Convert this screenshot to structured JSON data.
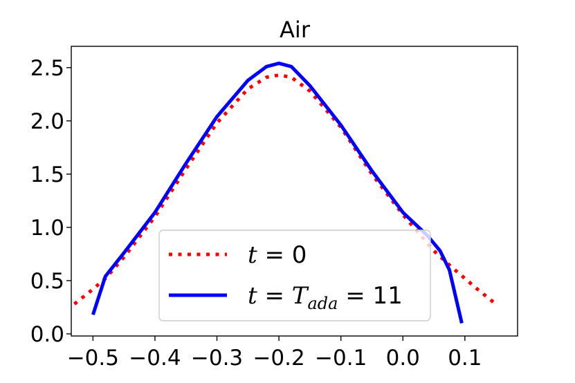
{
  "chart_data": {
    "type": "line",
    "title": "Air",
    "xlabel": "",
    "ylabel": "",
    "xlim": [
      -0.535,
      0.185
    ],
    "ylim": [
      -0.02,
      2.7
    ],
    "x_ticks": [
      -0.5,
      -0.4,
      -0.3,
      -0.2,
      -0.1,
      0.0,
      0.1
    ],
    "x_tick_labels": [
      "−0.5",
      "−0.4",
      "−0.3",
      "−0.2",
      "−0.1",
      "0.0",
      "0.1"
    ],
    "y_ticks": [
      0.0,
      0.5,
      1.0,
      1.5,
      2.0,
      2.5
    ],
    "y_tick_labels": [
      "0.0",
      "0.5",
      "1.0",
      "1.5",
      "2.0",
      "2.5"
    ],
    "grid": false,
    "legend_position": "lower-center",
    "series": [
      {
        "name": "t = 0",
        "color": "#ff0000",
        "style": "dotted",
        "x": [
          -0.53,
          -0.5,
          -0.48,
          -0.45,
          -0.4,
          -0.35,
          -0.3,
          -0.25,
          -0.22,
          -0.2,
          -0.18,
          -0.15,
          -0.1,
          -0.05,
          0.0,
          0.05,
          0.08,
          0.1,
          0.12,
          0.15
        ],
        "y": [
          0.28,
          0.42,
          0.52,
          0.72,
          1.1,
          1.55,
          1.98,
          2.3,
          2.41,
          2.43,
          2.41,
          2.28,
          1.94,
          1.5,
          1.12,
          0.78,
          0.62,
          0.52,
          0.42,
          0.28
        ]
      },
      {
        "name": "t = T_ada = 11",
        "color": "#0000ff",
        "style": "solid",
        "x": [
          -0.5,
          -0.48,
          -0.45,
          -0.4,
          -0.35,
          -0.3,
          -0.25,
          -0.22,
          -0.2,
          -0.18,
          -0.15,
          -0.1,
          -0.05,
          0.0,
          0.04,
          0.06,
          0.075,
          0.095
        ],
        "y": [
          0.18,
          0.54,
          0.76,
          1.14,
          1.6,
          2.04,
          2.38,
          2.51,
          2.54,
          2.51,
          2.33,
          1.96,
          1.53,
          1.14,
          0.92,
          0.78,
          0.6,
          0.1
        ]
      }
    ],
    "legend": {
      "entry1_prefix": "t",
      "entry1_suffix": " = 0",
      "entry2_prefix": "t",
      "entry2_mid": " = ",
      "entry2_T": "T",
      "entry2_sub": "ada",
      "entry2_suffix": " = 11"
    }
  }
}
